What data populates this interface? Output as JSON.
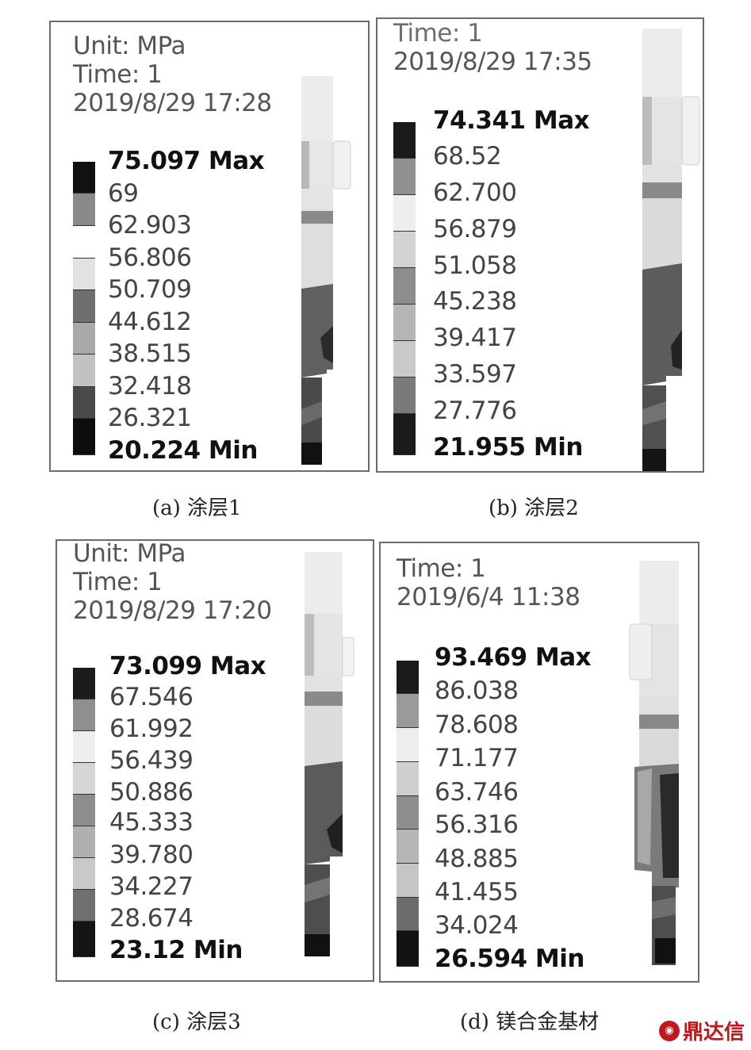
{
  "panels": [
    {
      "header": [
        "Unit: MPa",
        "Time: 1",
        "2019/8/29 17:28"
      ],
      "legend": [
        "75.097 Max",
        "69",
        "62.903",
        "56.806",
        "50.709",
        "44.612",
        "38.515",
        "32.418",
        "26.321",
        "20.224 Min"
      ],
      "swatch_colors": [
        "#111111",
        "#8a8a8a",
        "#ffffff",
        "#e2e2e2",
        "#6e6e6e",
        "#a9a9a9",
        "#c2c2c2",
        "#4a4a4a",
        "#0d0d0d"
      ],
      "caption": "(a) 涂层1"
    },
    {
      "header": [
        "Time: 1",
        "2019/8/29 17:35"
      ],
      "legend": [
        "74.341 Max",
        "68.52",
        "62.700",
        "56.879",
        "51.058",
        "45.238",
        "39.417",
        "33.597",
        "27.776",
        "21.955 Min"
      ],
      "swatch_colors": [
        "#1a1a1a",
        "#909090",
        "#eeeeee",
        "#d2d2d2",
        "#8c8c8c",
        "#b5b5b5",
        "#c9c9c9",
        "#7a7a7a",
        "#1b1b1b"
      ],
      "caption": "(b) 涂层2"
    },
    {
      "header": [
        "Unit: MPa",
        "Time: 1",
        "2019/8/29 17:20"
      ],
      "legend": [
        "73.099 Max",
        "67.546",
        "61.992",
        "56.439",
        "50.886",
        "45.333",
        "39.780",
        "34.227",
        "28.674",
        "23.12 Min"
      ],
      "swatch_colors": [
        "#1c1c1c",
        "#8f8f8f",
        "#eeeeee",
        "#d6d6d6",
        "#8e8e8e",
        "#b0b0b0",
        "#c8c8c8",
        "#707070",
        "#141414"
      ],
      "caption": "(c) 涂层3"
    },
    {
      "header": [
        "Time: 1",
        "2019/6/4 11:38"
      ],
      "legend": [
        "93.469 Max",
        "86.038",
        "78.608",
        "71.177",
        "63.746",
        "56.316",
        "48.885",
        "41.455",
        "34.024",
        "26.594 Min"
      ],
      "swatch_colors": [
        "#1a1a1a",
        "#9a9a9a",
        "#ededed",
        "#cfcfcf",
        "#8d8d8d",
        "#b6b6b6",
        "#c6c6c6",
        "#6c6c6c",
        "#121212"
      ],
      "caption": "(d) 镁合金基材"
    }
  ],
  "watermark": "鼎达信"
}
